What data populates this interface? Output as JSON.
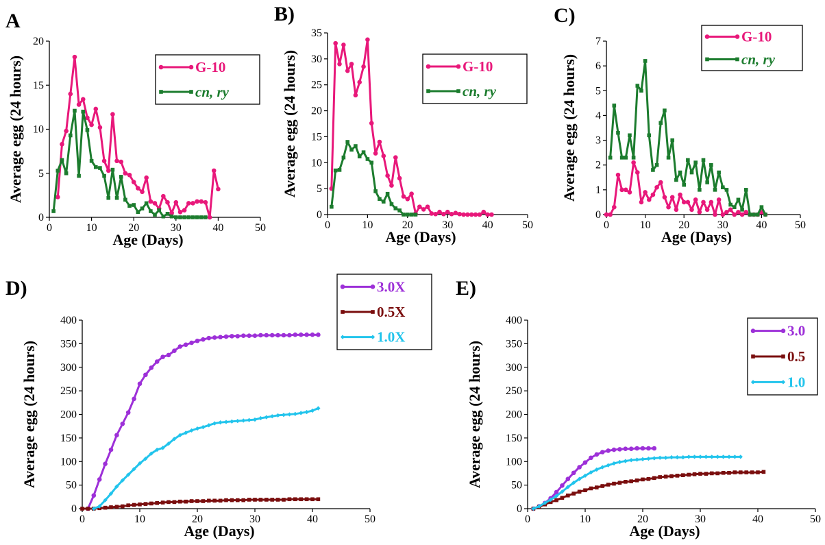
{
  "colors": {
    "pink": "#e8187a",
    "green": "#1c7c2e",
    "purple": "#9d30d8",
    "maroon": "#7a0e0e",
    "cyan": "#22c4ec"
  },
  "chart_data": [
    {
      "id": "A",
      "panel_label": "A",
      "type": "line",
      "xlabel": "Age (Days)",
      "ylabel": "Average egg (24 hours)",
      "xlim": [
        0,
        50
      ],
      "ylim": [
        0,
        20
      ],
      "xticks": [
        0,
        10,
        20,
        30,
        40,
        50
      ],
      "yticks": [
        0,
        5,
        10,
        15,
        20
      ],
      "legend_position": "top-right",
      "series": [
        {
          "name": "G-10",
          "color": "#e8187a",
          "marker": "circle",
          "italic": false,
          "x": [
            2,
            3,
            4,
            5,
            6,
            7,
            8,
            9,
            10,
            11,
            12,
            13,
            14,
            15,
            16,
            17,
            18,
            19,
            20,
            21,
            22,
            23,
            24,
            25,
            26,
            27,
            28,
            29,
            30,
            31,
            32,
            33,
            34,
            35,
            36,
            37,
            38,
            39,
            40,
            41
          ],
          "y": [
            2.3,
            8.3,
            9.8,
            14,
            18.2,
            12.8,
            13.4,
            11.3,
            10.5,
            12.3,
            10.2,
            6.4,
            5.3,
            11.7,
            6.4,
            6.3,
            5,
            4.8,
            4,
            3.3,
            2.9,
            4.5,
            1.8,
            1.6,
            1,
            2.4,
            1.7,
            0.5,
            1.7,
            0.6,
            0.8,
            1.6,
            1.6,
            1.8,
            1.8,
            1.7,
            0,
            5.3,
            3.2,
            null
          ]
        },
        {
          "name": "cn, ry",
          "color": "#1c7c2e",
          "marker": "square",
          "italic": true,
          "x": [
            1,
            2,
            3,
            4,
            5,
            6,
            7,
            8,
            9,
            10,
            11,
            12,
            13,
            14,
            15,
            16,
            17,
            18,
            19,
            20,
            21,
            22,
            23,
            24,
            25,
            26,
            27,
            28,
            29,
            30,
            31,
            32,
            33,
            34,
            35,
            36,
            37
          ],
          "y": [
            0.7,
            5.3,
            6.5,
            5,
            9.3,
            12.1,
            4.7,
            12,
            9.9,
            6.4,
            5.7,
            5.6,
            4.7,
            2.2,
            5.4,
            2.2,
            4.6,
            2,
            1.3,
            1.4,
            0.6,
            1,
            1.6,
            0.7,
            0.3,
            0.8,
            0.1,
            0.4,
            0.1,
            0,
            0,
            0,
            0,
            0,
            0,
            0,
            0
          ]
        }
      ]
    },
    {
      "id": "B",
      "panel_label": "B)",
      "type": "line",
      "xlabel": "Age (Days)",
      "ylabel": "Average egg (24 hours)",
      "xlim": [
        0,
        50
      ],
      "ylim": [
        0,
        35
      ],
      "xticks": [
        0,
        10,
        20,
        30,
        40,
        50
      ],
      "yticks": [
        0,
        5,
        10,
        15,
        20,
        25,
        30,
        35
      ],
      "legend_position": "top-right",
      "series": [
        {
          "name": "G-10",
          "color": "#e8187a",
          "marker": "circle",
          "italic": false,
          "x": [
            1,
            2,
            3,
            4,
            5,
            6,
            7,
            8,
            9,
            10,
            11,
            12,
            13,
            14,
            15,
            16,
            17,
            18,
            19,
            20,
            21,
            22,
            23,
            24,
            25,
            26,
            27,
            28,
            29,
            30,
            31,
            32,
            33,
            34,
            35,
            36,
            37,
            38,
            39,
            40,
            41
          ],
          "y": [
            5,
            33,
            29,
            32.7,
            27.7,
            29,
            23,
            25.5,
            28.5,
            33.7,
            17.6,
            11.8,
            14,
            11.3,
            7.5,
            5.6,
            11,
            7,
            3.5,
            3,
            4,
            0.2,
            1.5,
            1,
            1.5,
            0.2,
            0.1,
            0.5,
            0.1,
            0.5,
            0.1,
            0.3,
            0.1,
            0,
            0,
            0,
            0,
            0,
            0.5,
            0,
            0
          ]
        },
        {
          "name": "cn, ry",
          "color": "#1c7c2e",
          "marker": "square",
          "italic": true,
          "x": [
            1,
            2,
            3,
            4,
            5,
            6,
            7,
            8,
            9,
            10,
            11,
            12,
            13,
            14,
            15,
            16,
            17,
            18,
            19,
            20,
            21,
            22
          ],
          "y": [
            1.5,
            8.5,
            8.6,
            11,
            14,
            12.5,
            13.2,
            11.2,
            12,
            10.7,
            10,
            4.5,
            3,
            2.5,
            4,
            2,
            1.2,
            0.8,
            0,
            0,
            0,
            0
          ]
        }
      ]
    },
    {
      "id": "C",
      "panel_label": "C)",
      "type": "line",
      "xlabel": "Age (Days)",
      "ylabel": "Average egg (24 hours)",
      "xlim": [
        0,
        50
      ],
      "ylim": [
        0,
        7
      ],
      "xticks": [
        0,
        10,
        20,
        30,
        40,
        50
      ],
      "yticks": [
        0,
        1,
        2,
        3,
        4,
        5,
        6,
        7
      ],
      "legend_position": "top-right",
      "series": [
        {
          "name": "G-10",
          "color": "#e8187a",
          "marker": "circle",
          "italic": false,
          "x": [
            0,
            1,
            2,
            3,
            4,
            5,
            6,
            7,
            8,
            9,
            10,
            11,
            12,
            13,
            14,
            15,
            16,
            17,
            18,
            19,
            20,
            21,
            22,
            23,
            24,
            25,
            26,
            27,
            28,
            29,
            30,
            31,
            32,
            33,
            34,
            35,
            36,
            37,
            38,
            39,
            40,
            41
          ],
          "y": [
            0,
            0,
            0.3,
            1.6,
            1,
            1,
            0.9,
            2.1,
            1.7,
            0.5,
            0.9,
            0.6,
            0.8,
            1.1,
            1.3,
            0.7,
            0.3,
            0.7,
            0.2,
            0.8,
            0.5,
            0.5,
            0.2,
            0.6,
            0.1,
            0.5,
            0.2,
            0.5,
            0,
            0.6,
            0,
            0.1,
            0.2,
            0,
            0.1,
            0,
            0.1,
            0,
            0,
            0,
            0.1,
            0
          ]
        },
        {
          "name": "cn, ry",
          "color": "#1c7c2e",
          "marker": "square",
          "italic": true,
          "x": [
            1,
            2,
            3,
            4,
            5,
            6,
            7,
            8,
            9,
            10,
            11,
            12,
            13,
            14,
            15,
            16,
            17,
            18,
            19,
            20,
            21,
            22,
            23,
            24,
            25,
            26,
            27,
            28,
            29,
            30,
            31,
            32,
            33,
            34,
            35,
            36,
            37,
            38,
            39,
            40,
            41
          ],
          "y": [
            2.3,
            4.4,
            3.3,
            2.3,
            2.3,
            3.2,
            2.3,
            5.2,
            5,
            6.2,
            3.2,
            1.8,
            2,
            3.7,
            4.2,
            2.3,
            3,
            1.4,
            1.7,
            1.2,
            2.2,
            1.7,
            2.1,
            1,
            2.2,
            1.3,
            2,
            1,
            1.7,
            1.1,
            1,
            0.4,
            0.3,
            0.6,
            0.2,
            1,
            0,
            0,
            0,
            0.3,
            0
          ]
        }
      ]
    },
    {
      "id": "D",
      "panel_label": "D)",
      "type": "line",
      "xlabel": "Age (Days)",
      "ylabel": "Average egg (24 hours)",
      "xlim": [
        0,
        50
      ],
      "ylim": [
        0,
        400
      ],
      "xticks": [
        0,
        10,
        20,
        30,
        40,
        50
      ],
      "yticks": [
        0,
        50,
        100,
        150,
        200,
        250,
        300,
        350,
        400
      ],
      "legend_position": "top-right",
      "series": [
        {
          "name": "3.0X",
          "color": "#9d30d8",
          "marker": "circle",
          "italic": false,
          "x": [
            1,
            2,
            3,
            4,
            5,
            6,
            7,
            8,
            9,
            10,
            11,
            12,
            13,
            14,
            15,
            16,
            17,
            18,
            19,
            20,
            21,
            22,
            23,
            24,
            25,
            26,
            27,
            28,
            29,
            30,
            31,
            32,
            33,
            34,
            35,
            36,
            37,
            38,
            39,
            40,
            41
          ],
          "y": [
            0,
            28,
            62,
            95,
            125,
            156,
            180,
            204,
            233,
            265,
            284,
            299,
            312,
            322,
            326,
            335,
            344,
            348,
            352,
            356,
            359,
            362,
            363,
            364,
            365,
            366,
            366,
            367,
            367,
            367,
            368,
            368,
            368,
            368,
            368,
            368,
            369,
            369,
            369,
            369,
            369
          ]
        },
        {
          "name": "0.5X",
          "color": "#7a0e0e",
          "marker": "square",
          "italic": false,
          "x": [
            0,
            1,
            2,
            3,
            4,
            5,
            6,
            7,
            8,
            9,
            10,
            11,
            12,
            13,
            14,
            15,
            16,
            17,
            18,
            19,
            20,
            21,
            22,
            23,
            24,
            25,
            26,
            27,
            28,
            29,
            30,
            31,
            32,
            33,
            34,
            35,
            36,
            37,
            38,
            39,
            40,
            41
          ],
          "y": [
            0,
            0,
            0,
            1,
            2,
            3,
            4,
            5,
            7,
            8,
            9,
            10,
            11,
            12,
            13,
            14,
            14,
            15,
            15,
            16,
            16,
            16,
            17,
            17,
            17,
            18,
            18,
            18,
            18,
            19,
            19,
            19,
            19,
            19,
            19,
            19,
            20,
            20,
            20,
            20,
            20,
            20
          ]
        },
        {
          "name": "1.0X",
          "color": "#22c4ec",
          "marker": "diamond",
          "italic": false,
          "x": [
            2,
            3,
            4,
            5,
            6,
            7,
            8,
            9,
            10,
            11,
            12,
            13,
            14,
            15,
            16,
            17,
            18,
            19,
            20,
            21,
            22,
            23,
            24,
            25,
            26,
            27,
            28,
            29,
            30,
            31,
            32,
            33,
            34,
            35,
            36,
            37,
            38,
            39,
            40,
            41
          ],
          "y": [
            0,
            5,
            18,
            32,
            47,
            60,
            72,
            84,
            96,
            106,
            117,
            125,
            129,
            138,
            148,
            156,
            161,
            166,
            170,
            173,
            177,
            181,
            183,
            184,
            185,
            186,
            187,
            188,
            189,
            192,
            194,
            196,
            198,
            199,
            200,
            201,
            203,
            205,
            208,
            213
          ]
        }
      ]
    },
    {
      "id": "E",
      "panel_label": "E)",
      "type": "line",
      "xlabel": "Age (Days)",
      "ylabel": "Average egg (24 hours)",
      "xlim": [
        0,
        50
      ],
      "ylim": [
        0,
        400
      ],
      "xticks": [
        0,
        10,
        20,
        30,
        40,
        50
      ],
      "yticks": [
        0,
        50,
        100,
        150,
        200,
        250,
        300,
        350,
        400
      ],
      "legend_position": "top-right",
      "series": [
        {
          "name": "3.0",
          "color": "#9d30d8",
          "marker": "circle",
          "italic": false,
          "x": [
            1,
            2,
            3,
            4,
            5,
            6,
            7,
            8,
            9,
            10,
            11,
            12,
            13,
            14,
            15,
            16,
            17,
            18,
            19,
            20,
            21,
            22
          ],
          "y": [
            0,
            5,
            12,
            22,
            35,
            49,
            63,
            76,
            88,
            98,
            108,
            115,
            120,
            123,
            125,
            126,
            127,
            127,
            128,
            128,
            128,
            128
          ]
        },
        {
          "name": "0.5",
          "color": "#7a0e0e",
          "marker": "square",
          "italic": false,
          "x": [
            1,
            2,
            3,
            4,
            5,
            6,
            7,
            8,
            9,
            10,
            11,
            12,
            13,
            14,
            15,
            16,
            17,
            18,
            19,
            20,
            21,
            22,
            23,
            24,
            25,
            26,
            27,
            28,
            29,
            30,
            31,
            32,
            33,
            34,
            35,
            36,
            37,
            38,
            39,
            40,
            41
          ],
          "y": [
            0,
            4,
            9,
            14,
            18,
            23,
            28,
            32,
            36,
            39,
            43,
            45,
            48,
            51,
            53,
            55,
            57,
            58,
            60,
            62,
            63,
            65,
            67,
            68,
            69,
            70,
            71,
            72,
            73,
            74,
            74,
            75,
            75,
            76,
            76,
            77,
            77,
            77,
            77,
            77,
            78
          ]
        },
        {
          "name": "1.0",
          "color": "#22c4ec",
          "marker": "diamond",
          "italic": false,
          "x": [
            1,
            2,
            3,
            4,
            5,
            6,
            7,
            8,
            9,
            10,
            11,
            12,
            13,
            14,
            15,
            16,
            17,
            18,
            19,
            20,
            21,
            22,
            23,
            24,
            25,
            26,
            27,
            28,
            29,
            30,
            31,
            32,
            33,
            34,
            35,
            36,
            37
          ],
          "y": [
            0,
            5,
            12,
            19,
            27,
            36,
            46,
            55,
            63,
            70,
            77,
            83,
            88,
            92,
            96,
            99,
            101,
            103,
            104,
            105,
            106,
            107,
            108,
            108,
            109,
            109,
            109,
            110,
            110,
            110,
            110,
            110,
            110,
            110,
            110,
            110,
            110
          ]
        }
      ]
    }
  ]
}
